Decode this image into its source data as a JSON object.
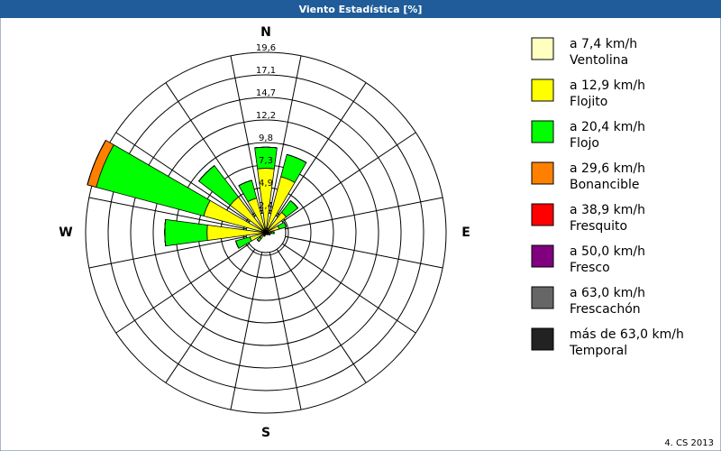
{
  "chart_data": {
    "type": "rose",
    "title": "Viento Estadística [%]",
    "categories": [
      "N",
      null,
      null,
      null,
      "E",
      null,
      null,
      null,
      "S",
      null,
      null,
      null,
      "W",
      null,
      null,
      null
    ],
    "rlim": [
      0,
      19.6
    ],
    "rticks": [
      {
        "value": 2.45,
        "label": "2,4"
      },
      {
        "value": 4.9,
        "label": "4,9"
      },
      {
        "value": 7.35,
        "label": "7,3"
      },
      {
        "value": 9.8,
        "label": "9,8"
      },
      {
        "value": 12.25,
        "label": "12,2"
      },
      {
        "value": 14.7,
        "label": "14,7"
      },
      {
        "value": 17.15,
        "label": "17,1"
      },
      {
        "value": 19.6,
        "label": "19,6"
      }
    ],
    "series": [
      {
        "name": "a 7,4 km/h",
        "description": "Ventolina",
        "color": "#ffffc0",
        "values": [
          0.5,
          0.5,
          0.3,
          0.3,
          0.2,
          0.2,
          0.1,
          0.1,
          0.1,
          0.1,
          0.2,
          0.3,
          0.4,
          0.5,
          0.4,
          0.4
        ]
      },
      {
        "name": "a 12,9 km/h",
        "description": "Flojito",
        "color": "#ffff00",
        "values": [
          6.5,
          5.8,
          2.5,
          1.2,
          0.4,
          0.2,
          0.1,
          0.1,
          0.1,
          0.2,
          0.6,
          1.5,
          6.0,
          6.5,
          4.5,
          3.5
        ]
      },
      {
        "name": "a 20,4 km/h",
        "description": "Flojo",
        "color": "#00ff00",
        "values": [
          2.3,
          2.5,
          1.6,
          0.8,
          0.3,
          0.1,
          0.1,
          0,
          0,
          0.1,
          0.4,
          1.6,
          4.6,
          12.1,
          4.3,
          2.0
        ]
      },
      {
        "name": "a 29,6 km/h",
        "description": "Bonancible",
        "color": "#ff8000",
        "values": [
          0,
          0,
          0,
          0,
          0,
          0,
          0,
          0,
          0,
          0,
          0,
          0,
          0,
          1.0,
          0,
          0
        ]
      },
      {
        "name": "a 38,9 km/h",
        "description": "Fresquito",
        "color": "#ff0000",
        "values": [
          0,
          0,
          0,
          0,
          0,
          0,
          0,
          0,
          0,
          0,
          0,
          0,
          0,
          0,
          0,
          0
        ]
      },
      {
        "name": "a 50,0 km/h",
        "description": "Fresco",
        "color": "#800080",
        "values": [
          0,
          0,
          0,
          0,
          0,
          0,
          0,
          0,
          0,
          0,
          0,
          0,
          0,
          0,
          0,
          0
        ]
      },
      {
        "name": "a 63,0 km/h",
        "description": "Frescachón",
        "color": "#666666",
        "values": [
          0,
          0,
          0,
          0,
          0,
          0,
          0,
          0,
          0,
          0,
          0,
          0,
          0,
          0,
          0,
          0
        ]
      },
      {
        "name": "más de 63,0 km/h",
        "description": "Temporal",
        "color": "#222222",
        "values": [
          0,
          0,
          0,
          0,
          0,
          0,
          0,
          0,
          0,
          0,
          0,
          0,
          0,
          0,
          0,
          0
        ]
      }
    ],
    "footer": "4. CS 2013"
  }
}
